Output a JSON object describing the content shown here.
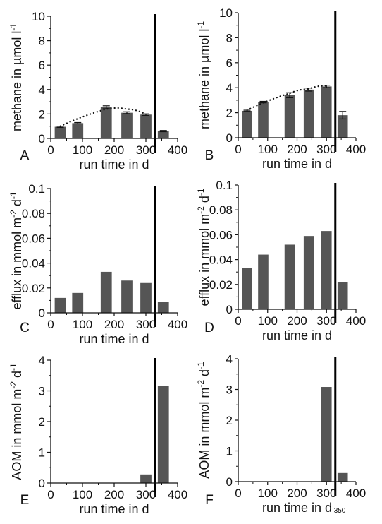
{
  "chart_data": [
    {
      "type": "bar",
      "panel_label": "A",
      "xlabel": "run time in d",
      "ylabel": "methane in µmol l-1",
      "ylabel_main": "methane in µmol l",
      "ylabel_sup": "-1",
      "xlim": [
        0,
        400
      ],
      "ylim": [
        0,
        10
      ],
      "xticks": [
        "0",
        "100",
        "200",
        "300",
        "400"
      ],
      "yticks": [
        "0",
        "2",
        "4",
        "6",
        "8",
        "10"
      ],
      "bar_width": 35,
      "x": [
        30,
        85,
        175,
        240,
        300,
        355
      ],
      "values": [
        0.95,
        1.25,
        2.55,
        2.1,
        1.95,
        0.6
      ],
      "errors": [
        0.05,
        0.05,
        0.12,
        0.08,
        0.06,
        0.05
      ],
      "vline_x": 330,
      "trend": {
        "x": [
          30,
          175,
          240,
          300
        ],
        "y": [
          1.0,
          2.4,
          2.4,
          2.0
        ]
      }
    },
    {
      "type": "bar",
      "panel_label": "B",
      "xlabel": "run time in d",
      "ylabel": "methane in µmol l-1",
      "ylabel_main": "methane in µmol l",
      "ylabel_sup": "-1",
      "xlim": [
        0,
        400
      ],
      "ylim": [
        0,
        10
      ],
      "xticks": [
        "0",
        "100",
        "200",
        "300",
        "400"
      ],
      "yticks": [
        "0",
        "2",
        "4",
        "6",
        "8",
        "10"
      ],
      "bar_width": 35,
      "x": [
        30,
        85,
        175,
        240,
        300,
        355
      ],
      "values": [
        2.15,
        2.85,
        3.4,
        3.85,
        4.1,
        1.8
      ],
      "errors": [
        0.05,
        0.06,
        0.2,
        0.12,
        0.1,
        0.3
      ],
      "vline_x": 330,
      "trend": {
        "x": [
          30,
          175,
          240,
          300
        ],
        "y": [
          2.2,
          3.55,
          3.9,
          4.15
        ]
      }
    },
    {
      "type": "bar",
      "panel_label": "C",
      "xlabel": "run time in d",
      "ylabel": "efflux in mmol m-2 d-1",
      "ylabel_main": "efflux in mmol m",
      "ylabel_mid": " d",
      "ylabel_sup": "-2",
      "ylabel_sup2": "-1",
      "xlim": [
        0,
        400
      ],
      "ylim": [
        0,
        0.1
      ],
      "xticks": [
        "0",
        "100",
        "200",
        "300",
        "400"
      ],
      "yticks": [
        "0",
        "0.02",
        "0.04",
        "0.06",
        "0.08",
        "0.1"
      ],
      "bar_width": 35,
      "x": [
        30,
        85,
        175,
        240,
        300,
        355
      ],
      "values": [
        0.012,
        0.016,
        0.033,
        0.026,
        0.024,
        0.009
      ],
      "vline_x": 330
    },
    {
      "type": "bar",
      "panel_label": "D",
      "xlabel": "run time in d",
      "ylabel": "efflux in mmol m-2 d-1",
      "ylabel_main": "efflux in mmol m",
      "ylabel_mid": " d",
      "ylabel_sup": "-2",
      "ylabel_sup2": "-1",
      "xlim": [
        0,
        400
      ],
      "ylim": [
        0,
        0.1
      ],
      "xticks": [
        "0",
        "100",
        "200",
        "300",
        "400"
      ],
      "yticks": [
        "0",
        "0.02",
        "0.04",
        "0.06",
        "0.08",
        "0.1"
      ],
      "bar_width": 35,
      "x": [
        30,
        85,
        175,
        240,
        300,
        355
      ],
      "values": [
        0.033,
        0.044,
        0.052,
        0.059,
        0.063,
        0.022
      ],
      "vline_x": 330
    },
    {
      "type": "bar",
      "panel_label": "E",
      "xlabel": "run time in d",
      "ylabel": "AOM in mmol m-2 d-1",
      "ylabel_main": "AOM in mmol m",
      "ylabel_mid": " d",
      "ylabel_sup": "-2",
      "ylabel_sup2": "-1",
      "xlim": [
        0,
        400
      ],
      "ylim": [
        0,
        4
      ],
      "xticks": [
        "0",
        "100",
        "200",
        "300",
        "400"
      ],
      "yticks": [
        "0",
        "1",
        "2",
        "3",
        "4"
      ],
      "bar_width": 35,
      "x": [
        300,
        355
      ],
      "values": [
        0.28,
        3.15
      ],
      "vline_x": 330
    },
    {
      "type": "bar",
      "panel_label": "F",
      "xlabel": "run time in d",
      "ylabel": "AOM in mmol m-2 d-1",
      "ylabel_main": "AOM in mmol m",
      "ylabel_mid": " d",
      "ylabel_sup": "-2",
      "ylabel_sup2": "-1",
      "xlim": [
        0,
        400
      ],
      "ylim": [
        0,
        4
      ],
      "xticks": [
        "0",
        "100",
        "200",
        "300",
        "400",
        "350"
      ],
      "yticks": [
        "0",
        "1",
        "2",
        "3",
        "4"
      ],
      "bar_width": 35,
      "x": [
        300,
        355
      ],
      "values": [
        3.08,
        0.28
      ],
      "vline_x": 330
    }
  ],
  "colors": {
    "bar": "#555555",
    "axis": "#111111",
    "vline": "#000000"
  }
}
